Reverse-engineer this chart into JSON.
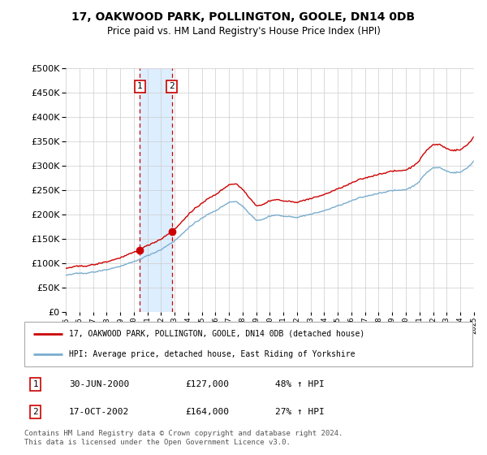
{
  "title": "17, OAKWOOD PARK, POLLINGTON, GOOLE, DN14 0DB",
  "subtitle": "Price paid vs. HM Land Registry's House Price Index (HPI)",
  "legend_label_red": "17, OAKWOOD PARK, POLLINGTON, GOOLE, DN14 0DB (detached house)",
  "legend_label_blue": "HPI: Average price, detached house, East Riding of Yorkshire",
  "table_rows": [
    {
      "num": "1",
      "date": "30-JUN-2000",
      "price": "£127,000",
      "pct": "48% ↑ HPI"
    },
    {
      "num": "2",
      "date": "17-OCT-2002",
      "price": "£164,000",
      "pct": "27% ↑ HPI"
    }
  ],
  "footer": "Contains HM Land Registry data © Crown copyright and database right 2024.\nThis data is licensed under the Open Government Licence v3.0.",
  "ylim": [
    0,
    500000
  ],
  "yticks": [
    0,
    50000,
    100000,
    150000,
    200000,
    250000,
    300000,
    350000,
    400000,
    450000,
    500000
  ],
  "sale1_year": 2000.458,
  "sale2_year": 2002.792,
  "sale1_price": 127000,
  "sale2_price": 164000,
  "highlight_xmin": 2000.458,
  "highlight_xmax": 2002.792,
  "red_color": "#cc0000",
  "blue_color": "#7aadce",
  "highlight_color": "#ddeeff",
  "vline_color": "#cc0000",
  "background_color": "#ffffff",
  "xmin": 1995.0,
  "xmax": 2025.25
}
